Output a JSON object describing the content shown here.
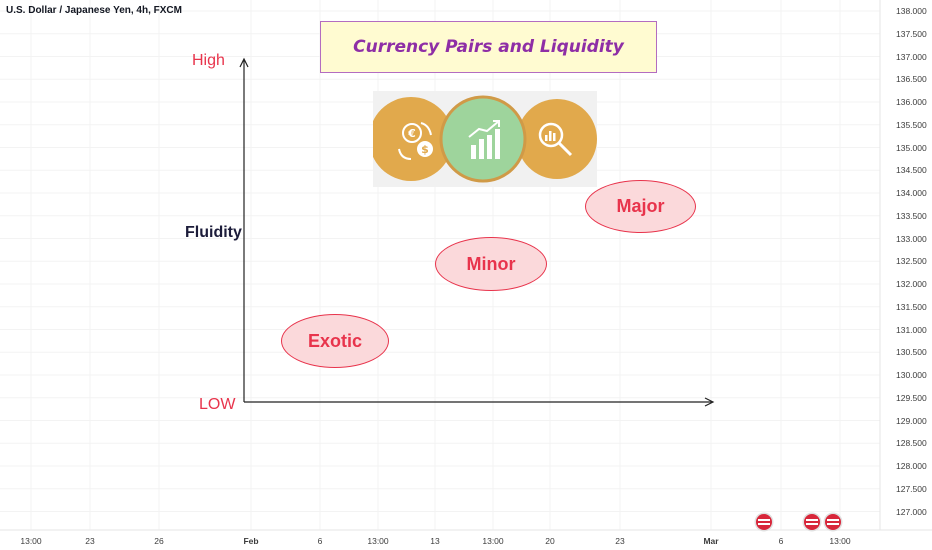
{
  "symbol": "U.S. Dollar / Japanese Yen, 4h, FXCM",
  "infographic": {
    "title": "Currency Pairs and Liquidity",
    "y_high": "High",
    "y_low": "LOW",
    "y_label": "Fluidity",
    "categories": [
      "Exotic",
      "Minor",
      "Major"
    ],
    "icons": [
      "currency-exchange-icon",
      "bar-chart-growth-icon",
      "magnifier-analysis-icon"
    ]
  },
  "price_axis": [
    "138.000",
    "137.500",
    "137.000",
    "136.500",
    "136.000",
    "135.500",
    "135.000",
    "134.500",
    "134.000",
    "133.500",
    "133.000",
    "132.500",
    "132.000",
    "131.500",
    "131.000",
    "130.500",
    "130.000",
    "129.500",
    "129.000",
    "128.500",
    "128.000",
    "127.500",
    "127.000"
  ],
  "time_axis": [
    {
      "label": "13:00",
      "bold": false
    },
    {
      "label": "23",
      "bold": false
    },
    {
      "label": "26",
      "bold": false
    },
    {
      "label": "Feb",
      "bold": true
    },
    {
      "label": "6",
      "bold": false
    },
    {
      "label": "13:00",
      "bold": false
    },
    {
      "label": "13",
      "bold": false
    },
    {
      "label": "13:00",
      "bold": false
    },
    {
      "label": "20",
      "bold": false
    },
    {
      "label": "23",
      "bold": false
    },
    {
      "label": "Mar",
      "bold": true
    },
    {
      "label": "6",
      "bold": false
    },
    {
      "label": "13:00",
      "bold": false
    }
  ],
  "colors": {
    "accent_red": "#e8344c",
    "title_purple": "#8e2ea6",
    "title_bg": "#fffbd1",
    "icon_orange": "#e1a94c",
    "icon_green": "#9ed49c"
  },
  "event_flags": [
    "us-flag-icon",
    "us-flag-icon",
    "us-flag-icon"
  ]
}
